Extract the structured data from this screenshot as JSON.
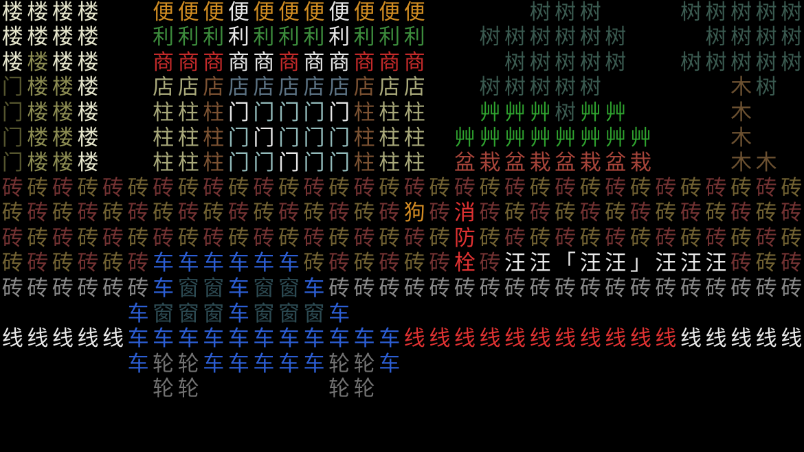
{
  "scene": {
    "background": "#000000",
    "palette": {
      "c": "#e6e6cc",
      "o": "#8c8c52",
      "d": "#55552e",
      "O": "#d08c22",
      "W": "#e8e8e8",
      "G": "#3c8c3c",
      "R": "#c42a2a",
      "k": "#a9a97a",
      "b": "#7c5232",
      "s": "#5c7384",
      "L": "#92baba",
      "t": "#3a5a50",
      "g": "#2fa32f",
      "p": "#a6443a",
      "w": "#6b5030",
      "r": "#733232",
      "y": "#726232",
      "D": "#d48c24",
      "F": "#e03232",
      "A": "#8a8a8a",
      "B": "#2c5ed4",
      "N": "#2c4a52",
      "n": "#727272"
    },
    "rows": [
      {
        "chars": "楼楼楼楼　　便便便便便便便便便便便　　　　树树树　　　树树树树树",
        "colors": "cccc..OOOWOOOWOOO....ttt...ttttt"
      },
      {
        "chars": "楼楼楼楼　　利利利利利利利利利利利　　树树树树树树　　　树树树树",
        "colors": "cccc..GGGWGGGWGGG..tttttt...tttt"
      },
      {
        "chars": "楼楼楼楼　　商商商商商商商商商商商　　　树树树树树　　树树树树树",
        "colors": "cocc..RRRWWRWWRRR...ttttt..ttttt"
      },
      {
        "chars": "门楼楼楼　　店店店店店店店店店店店　　树树树树树　　　　　木树　",
        "colors": "dooc..kkbsssssbkk..ttttt.....wt."
      },
      {
        "chars": "门楼楼楼　　柱柱柱门门门门门柱柱柱　　艸艸艸树艸艸　　　　木　　",
        "colors": "dooc..kkbWLLLWbkk..gggtgg....w.."
      },
      {
        "chars": "门楼楼楼　　柱柱柱门门门门门柱柱柱　艸艸艸艸艸艸艸艸　　　木　　",
        "colors": "dooc..kkbLWLLLbkk.gggggggg...w.."
      },
      {
        "chars": "门楼楼楼　　柱柱柱门门门门门柱柱柱　盆栽盆栽盆栽盆栽　　　木木　",
        "colors": "dooc..kkbLLWLLbkk.pppppppp...ww."
      },
      {
        "chars": "砖砖砖砖砖砖砖砖砖砖砖砖砖砖砖砖砖砖砖砖砖砖砖砖砖砖砖砖砖砖砖砖",
        "colors": "ryryryryryryryryryryryryryryryry"
      },
      {
        "chars": "砖砖砖砖砖砖砖砖砖砖砖砖砖砖砖砖狗砖消砖砖砖砖砖砖砖砖砖砖砖砖砖",
        "colors": "yryryryryryryryrDrFryryryryryryr"
      },
      {
        "chars": "砖砖砖砖砖砖砖砖砖砖砖砖砖砖砖砖砖砖防砖砖砖砖砖砖砖砖砖砖砖砖砖",
        "colors": "ryryryryryryryryryFyryryryryryry"
      },
      {
        "chars": "砖砖砖砖砖砖车车车车车车砖砖砖砖砖砖栓砖汪汪「汪汪」汪汪汪砖砖砖",
        "colors": "yryryrBBBBBByryryrFrWWWWWWWWWryr"
      },
      {
        "chars": "砖砖砖砖砖砖车窗窗车窗窗车砖砖砖砖砖砖砖砖砖砖砖砖砖砖砖砖砖砖砖",
        "colors": "AAAAAABNNBNNBAAAAAAAAAAAAAAAAAAA"
      },
      {
        "chars": "　　　　　车窗窗窗车窗窗窗车　　　　　　　　　　　　　　　　　　",
        "colors": ".....BNNNBNNNB.................."
      },
      {
        "chars": "线线线线线车车车车车车车车车车车线线线线线线线线线线线线线线线线",
        "colors": "WWWWWBBBBBBBBBBBFFFFFFFFFFFWWWWW"
      },
      {
        "chars": "　　　　　车轮轮车车车车车轮轮车　　　　　　　　　　　　　　　　",
        "colors": ".....BnnBBBBBnnB................"
      },
      {
        "chars": "　　　　　　轮轮　　　　　轮轮　　　　　　　　　　　　　　　　　",
        "colors": "......nn.....nn................."
      }
    ],
    "legend": {
      "楼": "building",
      "门": "door",
      "便": "convenience",
      "利": "profit",
      "商": "shop",
      "店": "store",
      "柱": "pillar",
      "树": "tree",
      "艸": "grass",
      "盆": "pot",
      "栽": "plant",
      "木": "wood",
      "砖": "brick",
      "狗": "dog",
      "消": "fire",
      "防": "fire",
      "栓": "hydrant",
      "汪": "bark",
      "车": "car",
      "窗": "window",
      "轮": "wheel",
      "线": "line"
    }
  }
}
